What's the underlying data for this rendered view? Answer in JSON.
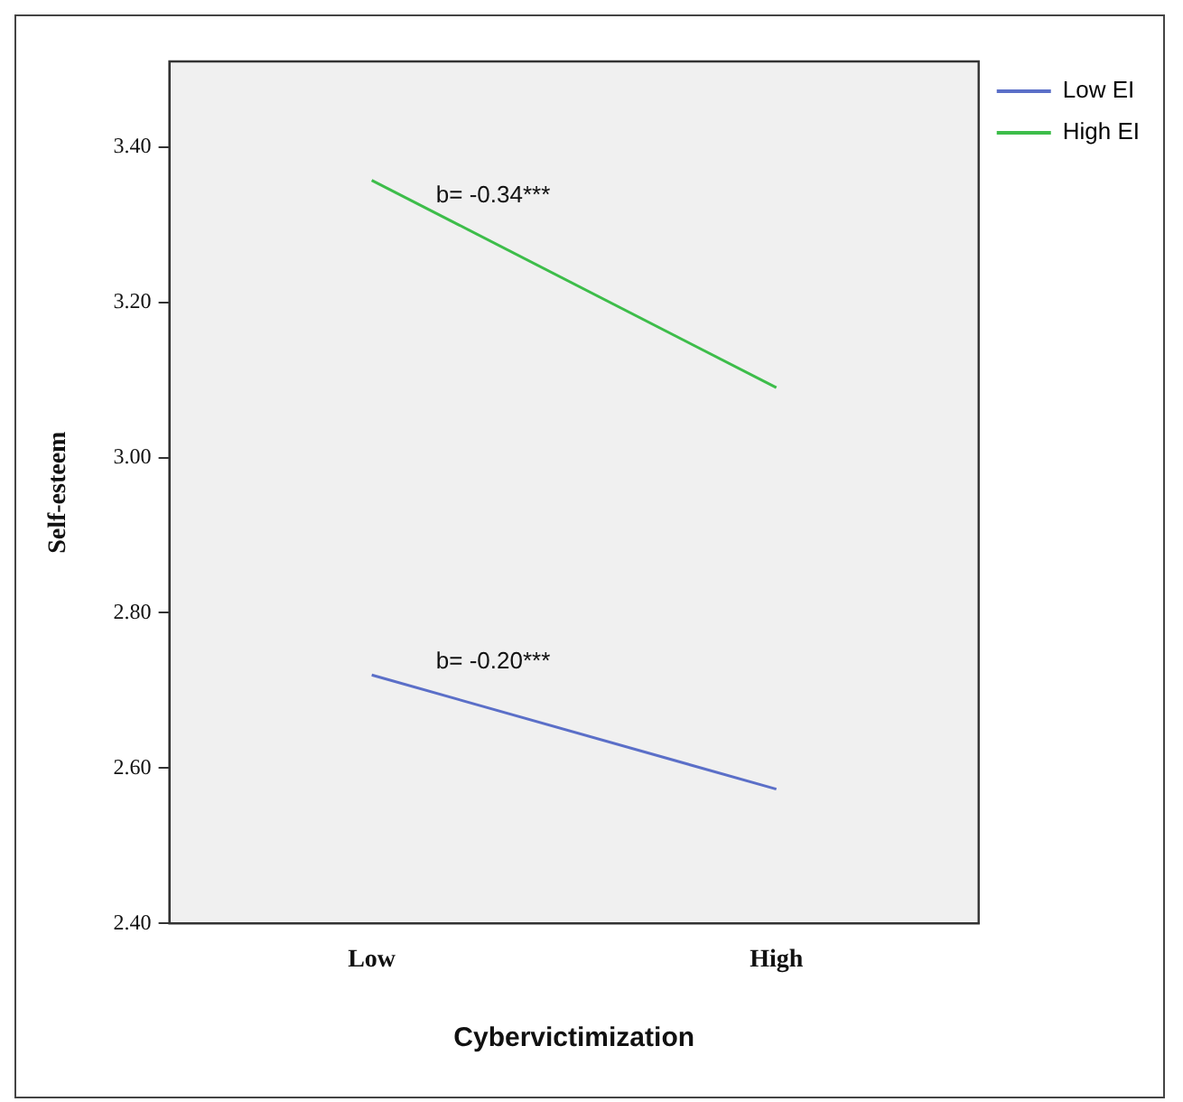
{
  "chart_data": {
    "type": "line",
    "xlabel": "Cybervictimization",
    "ylabel": "Self-esteem",
    "categories": [
      "Low",
      "High"
    ],
    "ylim": [
      2.4,
      3.51
    ],
    "yticks": [
      {
        "value": 2.4,
        "label": "2.40"
      },
      {
        "value": 2.6,
        "label": "2.60"
      },
      {
        "value": 2.8,
        "label": "2.80"
      },
      {
        "value": 3.0,
        "label": "3.00"
      },
      {
        "value": 3.2,
        "label": "3.20"
      },
      {
        "value": 3.4,
        "label": "3.40"
      }
    ],
    "series": [
      {
        "name": "Low EI",
        "color": "#5b6fc8",
        "values": [
          2.72,
          2.573
        ]
      },
      {
        "name": "High EI",
        "color": "#3dbd4a",
        "values": [
          3.357,
          3.09
        ]
      }
    ],
    "annotations": [
      "b= -0.34***",
      "b= -0.20***"
    ],
    "grid": false,
    "legend": "top right",
    "marker": "none",
    "line_style": "solid"
  }
}
